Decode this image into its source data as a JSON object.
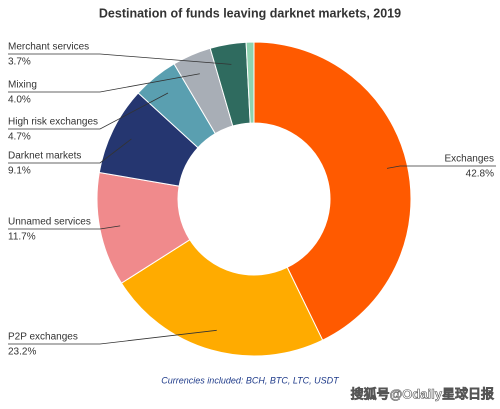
{
  "chart_data": {
    "type": "donut",
    "title": "Destination of funds leaving darknet markets, 2019",
    "categories": [
      "Exchanges",
      "P2P exchanges",
      "Unnamed services",
      "Darknet markets",
      "High risk exchanges",
      "Mixing",
      "Merchant services",
      null
    ],
    "values": [
      42.8,
      23.2,
      11.7,
      9.1,
      4.7,
      4.0,
      3.7,
      0.8
    ],
    "value_labels": [
      "42.8%",
      "23.2%",
      "11.7%",
      "9.1%",
      "4.7%",
      "4.0%",
      "3.7%",
      null
    ],
    "colors": [
      "#ff5a00",
      "#ffab00",
      "#f08a8c",
      "#253670",
      "#5a9fb0",
      "#a8aeb6",
      "#2f6b5f",
      "#8fd3b0"
    ],
    "note": "Currencies included: BCH, BTC, LTC, USDT"
  },
  "watermark": "搜狐号@Odaily星球日报"
}
